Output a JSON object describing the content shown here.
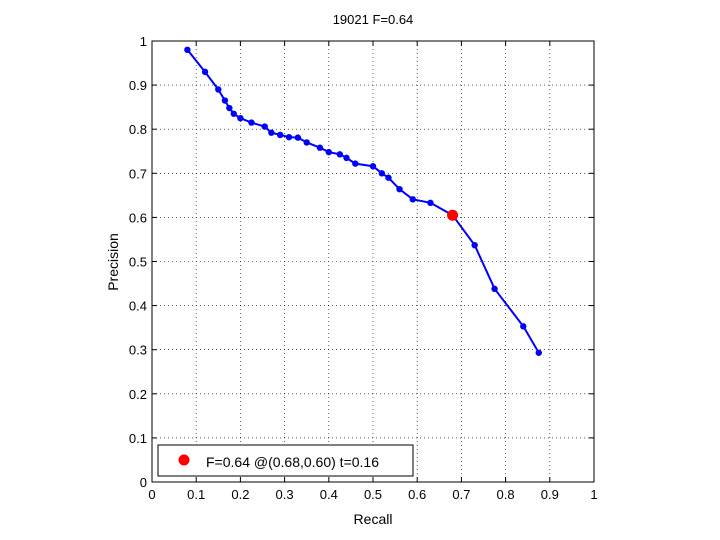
{
  "chart_data": {
    "type": "line",
    "title": "19021 F=0.64",
    "xlabel": "Recall",
    "ylabel": "Precision",
    "xlim": [
      0,
      1
    ],
    "ylim": [
      0,
      1
    ],
    "xticks": [
      "0",
      "0.1",
      "0.2",
      "0.3",
      "0.4",
      "0.5",
      "0.6",
      "0.7",
      "0.8",
      "0.9",
      "1"
    ],
    "yticks": [
      "0",
      "0.1",
      "0.2",
      "0.3",
      "0.4",
      "0.5",
      "0.6",
      "0.7",
      "0.8",
      "0.9",
      "1"
    ],
    "grid": true,
    "legend_position": "bottom-left",
    "series": [
      {
        "color": "#0000ff",
        "points": [
          [
            0.08,
            0.98
          ],
          [
            0.12,
            0.93
          ],
          [
            0.15,
            0.89
          ],
          [
            0.165,
            0.865
          ],
          [
            0.175,
            0.848
          ],
          [
            0.185,
            0.835
          ],
          [
            0.2,
            0.825
          ],
          [
            0.225,
            0.815
          ],
          [
            0.255,
            0.806
          ],
          [
            0.27,
            0.792
          ],
          [
            0.29,
            0.787
          ],
          [
            0.31,
            0.782
          ],
          [
            0.33,
            0.781
          ],
          [
            0.35,
            0.77
          ],
          [
            0.38,
            0.758
          ],
          [
            0.4,
            0.748
          ],
          [
            0.425,
            0.743
          ],
          [
            0.44,
            0.735
          ],
          [
            0.46,
            0.722
          ],
          [
            0.5,
            0.716
          ],
          [
            0.52,
            0.7
          ],
          [
            0.535,
            0.69
          ],
          [
            0.56,
            0.664
          ],
          [
            0.59,
            0.641
          ],
          [
            0.63,
            0.633
          ],
          [
            0.68,
            0.605
          ],
          [
            0.73,
            0.537
          ],
          [
            0.775,
            0.438
          ],
          [
            0.84,
            0.353
          ],
          [
            0.875,
            0.293
          ]
        ]
      }
    ],
    "highlight": {
      "x": 0.68,
      "y": 0.605,
      "color": "#ff0000",
      "legend_label": "F=0.64 @(0.68,0.60) t=0.16"
    }
  }
}
